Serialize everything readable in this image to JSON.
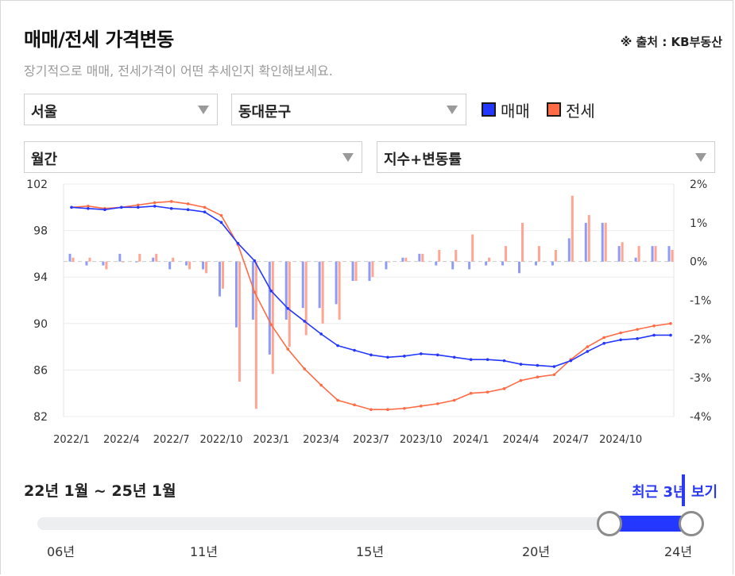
{
  "header": {
    "title": "매매/전세 가격변동",
    "source": "※ 출처 : KB부동산",
    "subtitle": "장기적으로 매매, 전세가격이 어떤 추세인지 확인해보세요."
  },
  "filters": {
    "region": "서울",
    "district": "동대문구",
    "period": "월간",
    "mode": "지수+변동률"
  },
  "legend": {
    "sale_label": "매매",
    "jeonse_label": "전세"
  },
  "colors": {
    "sale": "#2437ff",
    "jeonse": "#ff6b45",
    "sale_bar": "#8f9cf5",
    "jeonse_bar": "#ffa592",
    "accent": "#2b3af0"
  },
  "chart_data": {
    "type": "line+bar",
    "x": [
      "2022/1",
      "2022/2",
      "2022/3",
      "2022/4",
      "2022/5",
      "2022/6",
      "2022/7",
      "2022/8",
      "2022/9",
      "2022/10",
      "2022/11",
      "2022/12",
      "2023/1",
      "2023/2",
      "2023/3",
      "2023/4",
      "2023/5",
      "2023/6",
      "2023/7",
      "2023/8",
      "2023/9",
      "2023/10",
      "2023/11",
      "2023/12",
      "2024/1",
      "2024/2",
      "2024/3",
      "2024/4",
      "2024/5",
      "2024/6",
      "2024/7",
      "2024/8",
      "2024/9",
      "2024/10",
      "2024/11",
      "2024/12",
      "2025/1"
    ],
    "x_tick_labels": [
      "2022/1",
      "2022/4",
      "2022/7",
      "2022/10",
      "2023/1",
      "2023/4",
      "2023/7",
      "2023/10",
      "2024/1",
      "2024/4",
      "2024/7",
      "2024/10"
    ],
    "y_left": {
      "min": 82,
      "max": 102,
      "ticks": [
        82,
        86,
        90,
        94,
        98,
        102
      ]
    },
    "y_right": {
      "min": -4,
      "max": 2,
      "ticks": [
        "-4%",
        "-3%",
        "-2%",
        "-1%",
        "0%",
        "1%",
        "2%"
      ]
    },
    "series": [
      {
        "name": "매매",
        "kind": "line",
        "axis": "left",
        "values": [
          100.0,
          99.9,
          99.8,
          100.0,
          100.0,
          100.1,
          99.9,
          99.8,
          99.6,
          98.7,
          96.9,
          95.4,
          92.8,
          91.3,
          90.2,
          89.1,
          88.1,
          87.7,
          87.3,
          87.1,
          87.2,
          87.4,
          87.3,
          87.1,
          86.9,
          86.9,
          86.8,
          86.5,
          86.4,
          86.3,
          86.8,
          87.6,
          88.3,
          88.6,
          88.7,
          89.0,
          89.0
        ]
      },
      {
        "name": "전세",
        "kind": "line",
        "axis": "left",
        "values": [
          100.0,
          100.1,
          99.9,
          100.0,
          100.2,
          100.4,
          100.5,
          100.3,
          100.0,
          99.3,
          96.8,
          92.7,
          89.9,
          87.8,
          86.1,
          84.7,
          83.4,
          83.0,
          82.6,
          82.6,
          82.7,
          82.9,
          83.1,
          83.4,
          84.0,
          84.1,
          84.4,
          85.1,
          85.4,
          85.6,
          86.9,
          88.0,
          88.8,
          89.2,
          89.5,
          89.8,
          90.0
        ]
      },
      {
        "name": "매매",
        "kind": "bar",
        "axis": "right",
        "values": [
          0.2,
          -0.1,
          -0.1,
          0.2,
          0.0,
          0.1,
          -0.2,
          -0.1,
          -0.2,
          -0.9,
          -1.7,
          -1.5,
          -2.4,
          -1.5,
          -1.2,
          -1.2,
          -1.1,
          -0.5,
          -0.5,
          -0.2,
          0.1,
          0.2,
          -0.1,
          -0.2,
          -0.2,
          -0.1,
          -0.1,
          -0.3,
          -0.1,
          -0.1,
          0.6,
          1.0,
          1.0,
          0.4,
          0.1,
          0.4,
          0.4
        ]
      },
      {
        "name": "전세",
        "kind": "bar",
        "axis": "right",
        "values": [
          0.1,
          0.1,
          -0.2,
          0.0,
          0.2,
          0.2,
          0.1,
          -0.2,
          -0.3,
          -0.7,
          -3.1,
          -3.8,
          -2.9,
          -2.2,
          -1.9,
          -1.6,
          -1.5,
          -0.5,
          -0.4,
          0.0,
          0.1,
          0.2,
          0.3,
          0.3,
          0.7,
          0.1,
          0.4,
          1.0,
          0.4,
          0.3,
          1.7,
          1.2,
          1.0,
          0.5,
          0.4,
          0.4,
          0.3
        ]
      }
    ],
    "grid": true
  },
  "range": {
    "label": "22년 1월 ~ 25년 1월",
    "recent_button": "최근 3년 보기",
    "ticks": [
      "06년",
      "11년",
      "15년",
      "20년",
      "24년"
    ],
    "start_position": 0.875,
    "end_position": 1.0
  }
}
